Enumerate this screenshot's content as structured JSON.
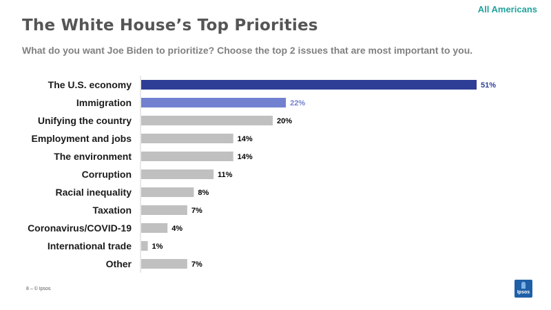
{
  "header": {
    "audience": "All Americans",
    "title": "The White House’s Top Priorities",
    "subtitle": "What do you want Joe Biden to prioritize? Choose the top 2 issues that are most important to you."
  },
  "footer": {
    "page_label": "8 ‒  © Ipsos",
    "logo_text": "Ipsos"
  },
  "colors": {
    "highlight_primary": "#2e3e96",
    "highlight_secondary": "#7181d0",
    "default_bar": "#c0c0c0",
    "audience_text": "#1fa39b"
  },
  "chart_data": {
    "type": "bar",
    "orientation": "horizontal",
    "categories": [
      "The U.S. economy",
      "Immigration",
      "Unifying the country",
      "Employment and jobs",
      "The environment",
      "Corruption",
      "Racial inequality",
      "Taxation",
      "Coronavirus/COVID-19",
      "International trade",
      "Other"
    ],
    "values": [
      51,
      22,
      20,
      14,
      14,
      11,
      8,
      7,
      4,
      1,
      7
    ],
    "value_labels": [
      "51%",
      "22%",
      "20%",
      "14%",
      "14%",
      "11%",
      "8%",
      "7%",
      "4%",
      "1%",
      "7%"
    ],
    "bar_colors": [
      "#2e3e96",
      "#7181d0",
      "#c0c0c0",
      "#c0c0c0",
      "#c0c0c0",
      "#c0c0c0",
      "#c0c0c0",
      "#c0c0c0",
      "#c0c0c0",
      "#c0c0c0",
      "#c0c0c0"
    ],
    "label_colors": [
      "#2e3e96",
      "#7181d0",
      "#000000",
      "#000000",
      "#000000",
      "#000000",
      "#000000",
      "#000000",
      "#000000",
      "#000000",
      "#000000"
    ],
    "xlim": [
      0,
      51
    ],
    "grid": false,
    "legend": false
  }
}
